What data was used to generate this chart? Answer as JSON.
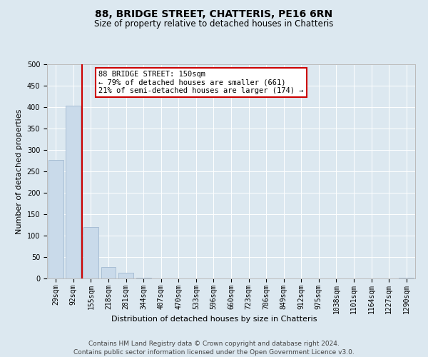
{
  "title": "88, BRIDGE STREET, CHATTERIS, PE16 6RN",
  "subtitle": "Size of property relative to detached houses in Chatteris",
  "xlabel": "Distribution of detached houses by size in Chatteris",
  "ylabel": "Number of detached properties",
  "bin_labels": [
    "29sqm",
    "92sqm",
    "155sqm",
    "218sqm",
    "281sqm",
    "344sqm",
    "407sqm",
    "470sqm",
    "533sqm",
    "596sqm",
    "660sqm",
    "723sqm",
    "786sqm",
    "849sqm",
    "912sqm",
    "975sqm",
    "1038sqm",
    "1101sqm",
    "1164sqm",
    "1227sqm",
    "1290sqm"
  ],
  "bar_heights": [
    277,
    403,
    120,
    27,
    14,
    2,
    0,
    0,
    0,
    0,
    0,
    0,
    0,
    0,
    0,
    0,
    0,
    0,
    0,
    0,
    2
  ],
  "bar_color": "#c9daea",
  "bar_edge_color": "#a0b8d0",
  "vline_pos": 1.5,
  "vline_color": "#cc0000",
  "annotation_title": "88 BRIDGE STREET: 150sqm",
  "annotation_line1": "← 79% of detached houses are smaller (661)",
  "annotation_line2": "21% of semi-detached houses are larger (174) →",
  "annotation_box_color": "#ffffff",
  "annotation_box_edge": "#cc0000",
  "ylim": [
    0,
    500
  ],
  "yticks": [
    0,
    50,
    100,
    150,
    200,
    250,
    300,
    350,
    400,
    450,
    500
  ],
  "footer_line1": "Contains HM Land Registry data © Crown copyright and database right 2024.",
  "footer_line2": "Contains public sector information licensed under the Open Government Licence v3.0.",
  "background_color": "#dce8f0",
  "plot_bg_color": "#dce8f0",
  "title_fontsize": 10,
  "subtitle_fontsize": 8.5,
  "axis_label_fontsize": 8,
  "tick_fontsize": 7,
  "annotation_fontsize": 7.5,
  "footer_fontsize": 6.5,
  "grid_color": "#ffffff"
}
